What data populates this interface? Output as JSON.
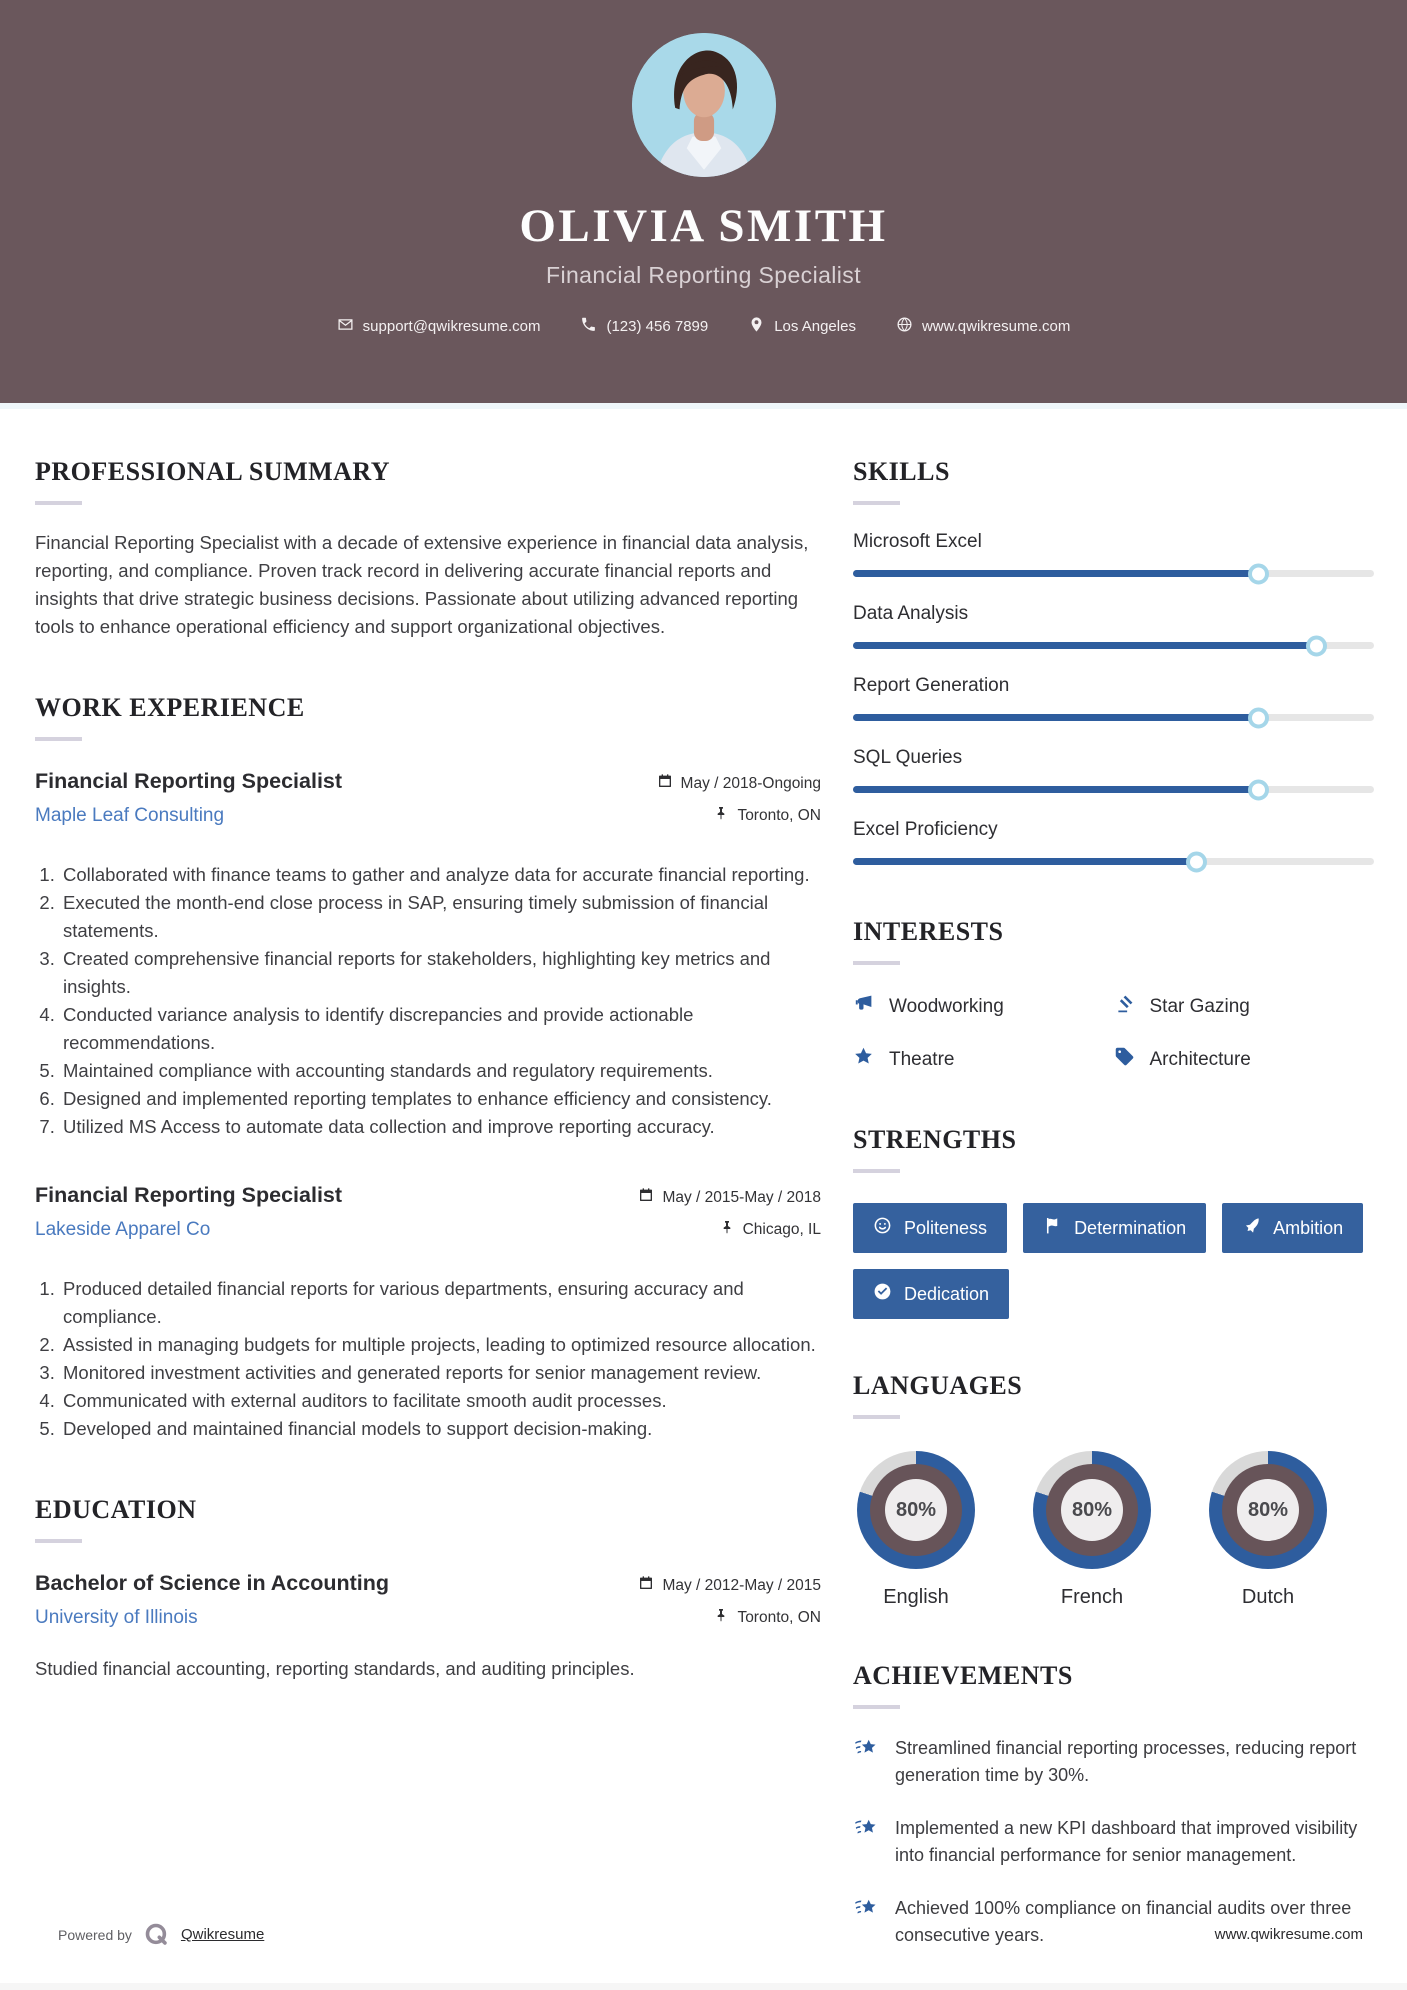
{
  "theme": {
    "header_bg": "#6a575c",
    "accent_blue": "#2e5d9e",
    "button_blue": "#35619e",
    "link_blue": "#4a7abf",
    "track_gray": "#e6e6e6",
    "knob_ring": "#a5d6e9",
    "donut_inner": "#675459",
    "donut_center": "#efedee",
    "donut_track": "#d9d9d9"
  },
  "header": {
    "name": "OLIVIA SMITH",
    "title": "Financial Reporting Specialist",
    "contact": [
      {
        "icon": "envelope-icon",
        "text": "support@qwikresume.com"
      },
      {
        "icon": "phone-icon",
        "text": "(123) 456 7899"
      },
      {
        "icon": "map-marker-icon",
        "text": "Los Angeles"
      },
      {
        "icon": "globe-icon",
        "text": "www.qwikresume.com"
      }
    ]
  },
  "summary": {
    "heading": "PROFESSIONAL SUMMARY",
    "text": "Financial Reporting Specialist with a decade of extensive experience in financial data analysis, reporting, and compliance. Proven track record in delivering accurate financial reports and insights that drive strategic business decisions. Passionate about utilizing advanced reporting tools to enhance operational efficiency and support organizational objectives."
  },
  "experience": {
    "heading": "WORK EXPERIENCE",
    "jobs": [
      {
        "title": "Financial Reporting Specialist",
        "company": "Maple Leaf Consulting",
        "date": "May / 2018-Ongoing",
        "location": "Toronto, ON",
        "date_icon": "calendar-icon",
        "location_icon": "pushpin-icon",
        "bullets": [
          "Collaborated with finance teams to gather and analyze data for accurate financial reporting.",
          "Executed the month-end close process in SAP, ensuring timely submission of financial statements.",
          "Created comprehensive financial reports for stakeholders, highlighting key metrics and insights.",
          "Conducted variance analysis to identify discrepancies and provide actionable recommendations.",
          "Maintained compliance with accounting standards and regulatory requirements.",
          "Designed and implemented reporting templates to enhance efficiency and consistency.",
          "Utilized MS Access to automate data collection and improve reporting accuracy."
        ]
      },
      {
        "title": "Financial Reporting Specialist",
        "company": "Lakeside Apparel Co",
        "date": "May / 2015-May / 2018",
        "location": "Chicago, IL",
        "date_icon": "calendar-icon",
        "location_icon": "pushpin-icon",
        "bullets": [
          "Produced detailed financial reports for various departments, ensuring accuracy and compliance.",
          "Assisted in managing budgets for multiple projects, leading to optimized resource allocation.",
          "Monitored investment activities and generated reports for senior management review.",
          "Communicated with external auditors to facilitate smooth audit processes.",
          "Developed and maintained financial models to support decision-making."
        ]
      }
    ]
  },
  "education": {
    "heading": "EDUCATION",
    "degree": "Bachelor of Science in Accounting",
    "school": "University of Illinois",
    "date": "May / 2012-May / 2015",
    "location": "Toronto, ON",
    "date_icon": "calendar-icon",
    "location_icon": "pushpin-icon",
    "description": "Studied financial accounting, reporting standards, and auditing principles."
  },
  "skills": {
    "heading": "SKILLS",
    "items": [
      {
        "label": "Microsoft Excel",
        "percent": 78
      },
      {
        "label": "Data Analysis",
        "percent": 89
      },
      {
        "label": "Report Generation",
        "percent": 78
      },
      {
        "label": "SQL Queries",
        "percent": 78
      },
      {
        "label": "Excel Proficiency",
        "percent": 66
      }
    ]
  },
  "interests": {
    "heading": "INTERESTS",
    "items": [
      {
        "icon": "megaphone-icon",
        "label": "Woodworking"
      },
      {
        "icon": "gavel-icon",
        "label": "Star Gazing"
      },
      {
        "icon": "star-icon",
        "label": "Theatre"
      },
      {
        "icon": "tag-icon",
        "label": "Architecture"
      }
    ]
  },
  "strengths": {
    "heading": "STRENGTHS",
    "items": [
      {
        "icon": "smiley-icon",
        "label": "Politeness"
      },
      {
        "icon": "flag-icon",
        "label": "Determination"
      },
      {
        "icon": "rocket-icon",
        "label": "Ambition"
      },
      {
        "icon": "check-circle-icon",
        "label": "Dedication"
      }
    ]
  },
  "languages": {
    "heading": "LANGUAGES",
    "items": [
      {
        "label": "English",
        "percent": 80,
        "percent_label": "80%"
      },
      {
        "label": "French",
        "percent": 80,
        "percent_label": "80%"
      },
      {
        "label": "Dutch",
        "percent": 80,
        "percent_label": "80%"
      }
    ]
  },
  "achievements": {
    "heading": "ACHIEVEMENTS",
    "icon": "shooting-star-icon",
    "items": [
      {
        "icon": "shooting-star-icon",
        "text": "Streamlined financial reporting processes, reducing report generation time by 30%."
      },
      {
        "icon": "shooting-star-icon",
        "text": "Implemented a new KPI dashboard that improved visibility into financial performance for senior management."
      },
      {
        "icon": "shooting-star-icon",
        "text": "Achieved 100% compliance on financial audits over three consecutive years."
      }
    ]
  },
  "footer": {
    "powered_by": "Powered by",
    "brand": "Qwikresume",
    "logo_icon": "q-logo-icon",
    "website": "www.qwikresume.com"
  }
}
